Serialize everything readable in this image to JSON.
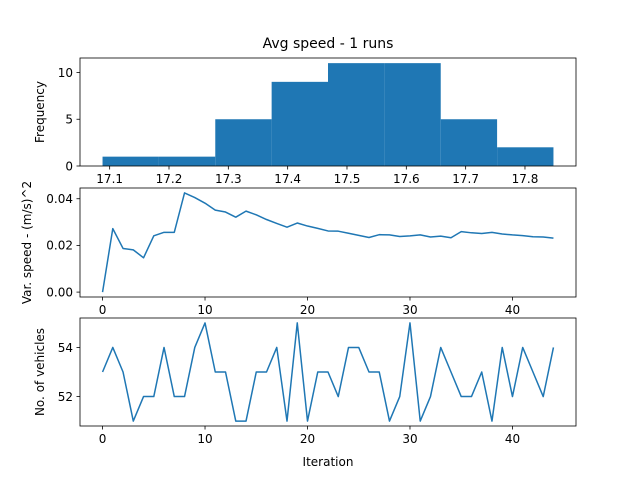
{
  "figure_title": "Avg speed - 1 runs",
  "colors": {
    "series": "#1f77b4",
    "axes": "#000000",
    "background": "#ffffff"
  },
  "chart_data": [
    {
      "type": "bar",
      "subtype": "histogram",
      "title": "Avg speed - 1 runs",
      "xlabel": "",
      "ylabel": "Frequency",
      "bin_edges": [
        17.088,
        17.183,
        17.278,
        17.373,
        17.468,
        17.563,
        17.658,
        17.753,
        17.848
      ],
      "values": [
        1,
        1,
        5,
        9,
        11,
        11,
        5,
        2
      ],
      "xlim": [
        17.05,
        17.886
      ],
      "ylim": [
        0,
        11.55
      ],
      "xticks": [
        17.1,
        17.2,
        17.3,
        17.4,
        17.5,
        17.6,
        17.7,
        17.8
      ],
      "xtick_labels": [
        "17.1",
        "17.2",
        "17.3",
        "17.4",
        "17.5",
        "17.6",
        "17.7",
        "17.8"
      ],
      "yticks": [
        0,
        5,
        10
      ],
      "ytick_labels": [
        "0",
        "5",
        "10"
      ]
    },
    {
      "type": "line",
      "xlabel": "",
      "ylabel": "Var. speed - (m/s)^2",
      "x": [
        0,
        1,
        2,
        3,
        4,
        5,
        6,
        7,
        8,
        9,
        10,
        11,
        12,
        13,
        14,
        15,
        16,
        17,
        18,
        19,
        20,
        21,
        22,
        23,
        24,
        25,
        26,
        27,
        28,
        29,
        30,
        31,
        32,
        33,
        34,
        35,
        36,
        37,
        38,
        39,
        40,
        41,
        42,
        43,
        44
      ],
      "values": [
        0.0,
        0.0272,
        0.0187,
        0.0181,
        0.0147,
        0.0241,
        0.0256,
        0.0256,
        0.0425,
        0.0405,
        0.0381,
        0.0351,
        0.0343,
        0.0321,
        0.0347,
        0.0331,
        0.0311,
        0.0294,
        0.0278,
        0.0296,
        0.0283,
        0.0273,
        0.0262,
        0.0261,
        0.0252,
        0.0243,
        0.0234,
        0.0246,
        0.0245,
        0.0238,
        0.0241,
        0.0245,
        0.0236,
        0.024,
        0.0233,
        0.0259,
        0.0254,
        0.0251,
        0.0256,
        0.0249,
        0.0245,
        0.0242,
        0.0237,
        0.0236,
        0.0231
      ],
      "xlim": [
        -2.2,
        46.2
      ],
      "ylim": [
        -0.0021,
        0.0446
      ],
      "xticks": [
        0,
        10,
        20,
        30,
        40
      ],
      "xtick_labels": [
        "0",
        "10",
        "20",
        "30",
        "40"
      ],
      "yticks": [
        0.0,
        0.02,
        0.04
      ],
      "ytick_labels": [
        "0.00",
        "0.02",
        "0.04"
      ]
    },
    {
      "type": "line",
      "xlabel": "Iteration",
      "ylabel": "No. of vehicles",
      "x": [
        0,
        1,
        2,
        3,
        4,
        5,
        6,
        7,
        8,
        9,
        10,
        11,
        12,
        13,
        14,
        15,
        16,
        17,
        18,
        19,
        20,
        21,
        22,
        23,
        24,
        25,
        26,
        27,
        28,
        29,
        30,
        31,
        32,
        33,
        34,
        35,
        36,
        37,
        38,
        39,
        40,
        41,
        42,
        43,
        44
      ],
      "values": [
        53,
        54,
        53,
        51,
        52,
        52,
        54,
        52,
        52,
        54,
        55,
        53,
        53,
        51,
        51,
        53,
        53,
        54,
        51,
        55,
        51,
        53,
        53,
        52,
        54,
        54,
        53,
        53,
        51,
        52,
        55,
        51,
        52,
        54,
        53,
        52,
        52,
        53,
        51,
        54,
        52,
        54,
        53,
        52,
        54
      ],
      "xlim": [
        -2.2,
        46.2
      ],
      "ylim": [
        50.8,
        55.2
      ],
      "xticks": [
        0,
        10,
        20,
        30,
        40
      ],
      "xtick_labels": [
        "0",
        "10",
        "20",
        "30",
        "40"
      ],
      "yticks": [
        52,
        54
      ],
      "ytick_labels": [
        "52",
        "54"
      ]
    }
  ]
}
